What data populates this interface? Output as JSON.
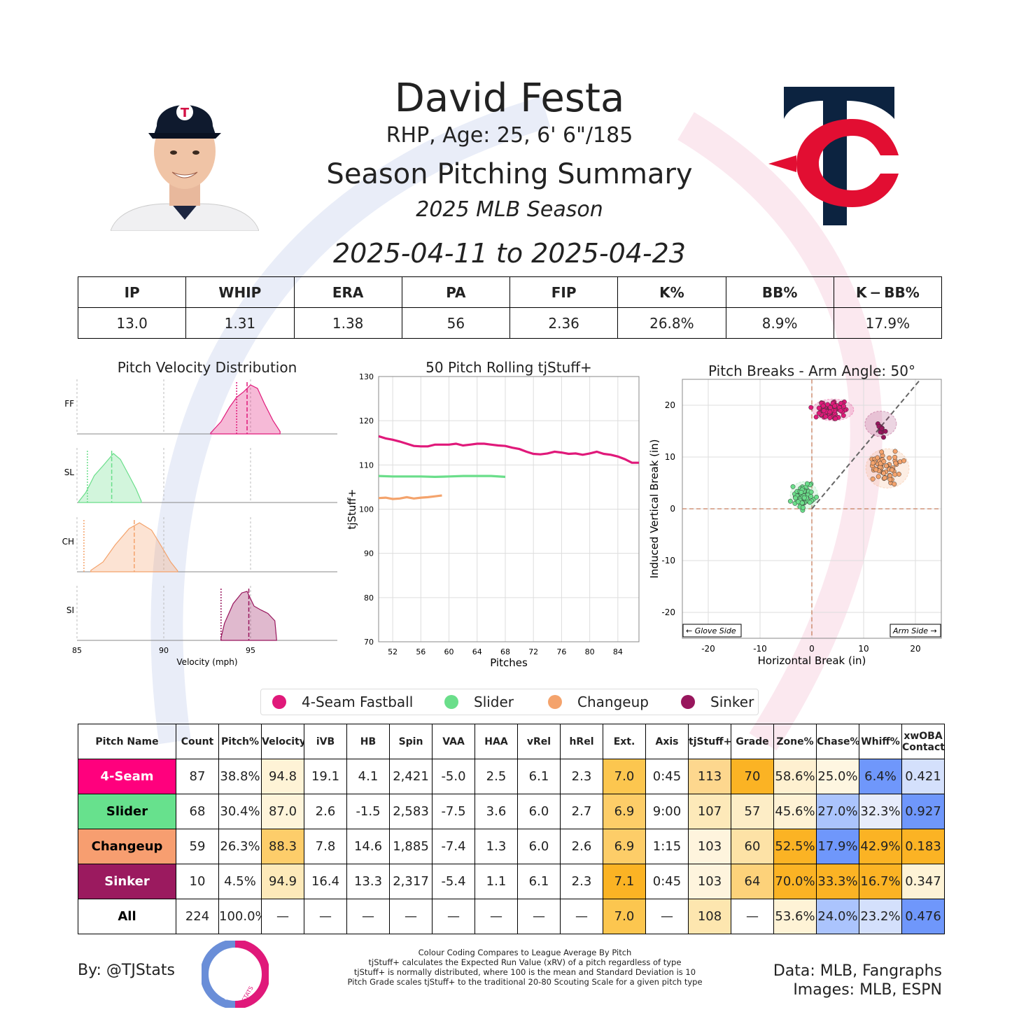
{
  "header": {
    "player_name": "David Festa",
    "player_info": "RHP, Age: 25, 6' 6\"/185",
    "title": "Season Pitching Summary",
    "season": "2025 MLB Season",
    "date_range": "2025-04-11 to 2025-04-23",
    "team_logo_letters": "TC"
  },
  "summary_stats": {
    "headers": [
      "IP",
      "WHIP",
      "ERA",
      "PA",
      "FIP",
      "K%",
      "BB%",
      "K − BB%"
    ],
    "values": [
      "13.0",
      "1.31",
      "1.38",
      "56",
      "2.36",
      "26.8%",
      "8.9%",
      "17.9%"
    ]
  },
  "colors": {
    "FF": "#e0197a",
    "SL": "#6ade8a",
    "CH": "#f4a36c",
    "SI": "#98165d"
  },
  "legend": {
    "items": [
      {
        "label": "4-Seam Fastball",
        "color": "#e0197a"
      },
      {
        "label": "Slider",
        "color": "#6ade8a"
      },
      {
        "label": "Changeup",
        "color": "#f4a36c"
      },
      {
        "label": "Sinker",
        "color": "#98165d"
      }
    ]
  },
  "chart_data": [
    {
      "type": "area",
      "title": "Pitch Velocity Distribution",
      "xlabel": "Velocity (mph)",
      "xlim": [
        85,
        100
      ],
      "xticks": [
        "85",
        "90",
        "95"
      ],
      "series": [
        {
          "name": "FF",
          "color": "#e0197a",
          "mean": 94.8,
          "league_avg": 94.2,
          "x": [
            92.7,
            93.3,
            93.8,
            94.2,
            94.6,
            95.0,
            95.4,
            95.8,
            96.3,
            96.7
          ],
          "density": [
            0.02,
            0.25,
            0.55,
            0.75,
            0.86,
            1.0,
            0.93,
            0.62,
            0.27,
            0.05
          ]
        },
        {
          "name": "SL",
          "color": "#6ade8a",
          "mean": 87.0,
          "league_avg": 85.6,
          "x": [
            85.1,
            85.5,
            86.0,
            86.5,
            87.1,
            87.5,
            88.0,
            88.4,
            88.7
          ],
          "density": [
            0.02,
            0.2,
            0.55,
            0.75,
            1.0,
            0.88,
            0.55,
            0.28,
            0.03
          ]
        },
        {
          "name": "CH",
          "color": "#f4a36c",
          "mean": 88.3,
          "league_avg": 85.4,
          "x": [
            85.8,
            86.5,
            87.2,
            88.0,
            88.6,
            89.3,
            89.9,
            90.4,
            90.8
          ],
          "density": [
            0.03,
            0.2,
            0.55,
            0.88,
            1.0,
            0.85,
            0.5,
            0.2,
            0.02
          ]
        },
        {
          "name": "SI",
          "color": "#98165d",
          "mean": 94.9,
          "league_avg": 93.3,
          "x": [
            93.3,
            93.5,
            94.0,
            94.5,
            94.8,
            95.2,
            95.6,
            96.0,
            96.4,
            96.5
          ],
          "density": [
            0.05,
            0.35,
            0.75,
            0.97,
            1.0,
            0.7,
            0.62,
            0.55,
            0.4,
            0.02
          ]
        }
      ]
    },
    {
      "type": "line",
      "title": "50 Pitch Rolling tjStuff+",
      "xlabel": "Pitches",
      "ylabel": "tjStuff+",
      "xlim": [
        50,
        87
      ],
      "ylim": [
        70,
        130
      ],
      "xticks": [
        52,
        56,
        60,
        64,
        68,
        72,
        76,
        80,
        84
      ],
      "yticks": [
        70,
        80,
        90,
        100,
        110,
        120,
        130
      ],
      "series": [
        {
          "name": "FF",
          "color": "#e0197a",
          "x": [
            50,
            51,
            52,
            53,
            54,
            55,
            56,
            57,
            58,
            59,
            60,
            61,
            62,
            63,
            64,
            65,
            66,
            67,
            68,
            69,
            70,
            71,
            72,
            73,
            74,
            75,
            76,
            77,
            78,
            79,
            80,
            81,
            82,
            83,
            84,
            85,
            86,
            87
          ],
          "y": [
            116.5,
            116.0,
            115.7,
            115.3,
            114.8,
            114.3,
            114.2,
            114.2,
            114.6,
            114.6,
            114.6,
            114.8,
            114.4,
            114.6,
            114.8,
            114.8,
            114.6,
            114.4,
            114.3,
            113.9,
            113.6,
            113.0,
            112.5,
            112.4,
            112.6,
            113.0,
            112.8,
            112.5,
            112.6,
            112.3,
            112.6,
            113.0,
            112.5,
            112.3,
            111.9,
            111.3,
            110.5,
            110.5
          ]
        },
        {
          "name": "SL",
          "color": "#6ade8a",
          "x": [
            50,
            52,
            54,
            56,
            58,
            60,
            62,
            64,
            66,
            68
          ],
          "y": [
            107.5,
            107.4,
            107.4,
            107.4,
            107.3,
            107.4,
            107.5,
            107.5,
            107.5,
            107.3
          ]
        },
        {
          "name": "CH",
          "color": "#f4a36c",
          "x": [
            50,
            51,
            52,
            53,
            54,
            55,
            56,
            57,
            58,
            59
          ],
          "y": [
            102.5,
            102.6,
            102.3,
            102.4,
            102.7,
            102.4,
            102.6,
            102.7,
            102.9,
            103.1
          ]
        }
      ]
    },
    {
      "type": "scatter",
      "title": "Pitch Breaks - Arm Angle: 50°",
      "xlabel": "Horizontal Break (in)",
      "ylabel": "Induced Vertical Break (in)",
      "xlim": [
        -25,
        25
      ],
      "ylim": [
        -25,
        25
      ],
      "xticks": [
        -20,
        -10,
        0,
        10,
        20
      ],
      "yticks": [
        -20,
        -10,
        0,
        10,
        20
      ],
      "arm_angle_deg": 50,
      "annotations": [
        "← Glove Side",
        "Arm Side →"
      ],
      "series": [
        {
          "name": "FF",
          "color": "#e0197a",
          "center": [
            4.1,
            19.1
          ],
          "spread": [
            2.1,
            1.1
          ],
          "count": 87
        },
        {
          "name": "SL",
          "color": "#6ade8a",
          "center": [
            -1.5,
            2.6
          ],
          "spread": [
            1.4,
            1.4
          ],
          "count": 68
        },
        {
          "name": "CH",
          "color": "#f4a36c",
          "center": [
            14.6,
            7.8
          ],
          "spread": [
            2.2,
            2.0
          ],
          "count": 59
        },
        {
          "name": "SI",
          "color": "#98165d",
          "center": [
            13.3,
            16.4
          ],
          "spread": [
            1.6,
            1.3
          ],
          "count": 10
        }
      ]
    }
  ],
  "pitch_table": {
    "headers": [
      "Pitch Name",
      "Count",
      "Pitch%",
      "Velocity",
      "iVB",
      "HB",
      "Spin",
      "VAA",
      "HAA",
      "vRel",
      "hRel",
      "Ext.",
      "Axis",
      "tjStuff+",
      "Grade",
      "Zone%",
      "Chase%",
      "Whiff%",
      "xwOBA Contact"
    ],
    "rows": [
      {
        "name": "4-Seam",
        "name_bg": "#ff007d",
        "name_color": "#ffffff",
        "cells": [
          "87",
          "38.8%",
          "94.8",
          "19.1",
          "4.1",
          "2,421",
          "-5.0",
          "2.5",
          "6.1",
          "2.3",
          "7.0",
          "0:45",
          "113",
          "70",
          "58.6%",
          "25.0%",
          "6.4%",
          "0.421"
        ],
        "bgs": [
          "",
          "",
          "#fef3d6",
          "",
          "",
          "",
          "",
          "",
          "",
          "",
          "#fcc64f",
          "",
          "#fdd78e",
          "#fbb324",
          "#fef0d0",
          "#fef6e1",
          "#6f97fb",
          "#d4e0fc"
        ]
      },
      {
        "name": "Slider",
        "name_bg": "#67e18d",
        "name_color": "#000000",
        "cells": [
          "68",
          "30.4%",
          "87.0",
          "2.6",
          "-1.5",
          "2,583",
          "-7.5",
          "3.6",
          "6.0",
          "2.7",
          "6.9",
          "9:00",
          "107",
          "57",
          "45.6%",
          "27.0%",
          "32.3%",
          "0.927"
        ],
        "bgs": [
          "",
          "",
          "#fef4da",
          "",
          "",
          "",
          "",
          "",
          "",
          "",
          "#fdcd68",
          "",
          "#fde9b9",
          "#fdedc6",
          "#fef2d5",
          "#abc4fd",
          "#e7ecfb",
          "#6f97fb"
        ]
      },
      {
        "name": "Changeup",
        "name_bg": "#f79e70",
        "name_color": "#000000",
        "cells": [
          "59",
          "26.3%",
          "88.3",
          "7.8",
          "14.6",
          "1,885",
          "-7.4",
          "1.3",
          "6.0",
          "2.6",
          "6.9",
          "1:15",
          "103",
          "60",
          "52.5%",
          "17.9%",
          "42.9%",
          "0.183"
        ],
        "bgs": [
          "",
          "",
          "#fdcd6a",
          "",
          "",
          "",
          "",
          "",
          "",
          "",
          "#fdcd68",
          "",
          "#fef4dd",
          "#fde2a6",
          "#fbb324",
          "#6f97fb",
          "#fbb324",
          "#fbb324"
        ]
      },
      {
        "name": "Sinker",
        "name_bg": "#9b1a5f",
        "name_color": "#ffffff",
        "cells": [
          "10",
          "4.5%",
          "94.9",
          "16.4",
          "13.3",
          "2,317",
          "-5.4",
          "1.1",
          "6.1",
          "2.3",
          "7.1",
          "0:45",
          "103",
          "64",
          "70.0%",
          "33.3%",
          "16.7%",
          "0.347"
        ],
        "bgs": [
          "",
          "",
          "#fde9b9",
          "",
          "",
          "",
          "",
          "",
          "",
          "",
          "#fbb324",
          "",
          "#fef4dd",
          "#fdd27a",
          "#fbb324",
          "#fbb324",
          "#fbb324",
          "#fef3d6"
        ]
      },
      {
        "name": "All",
        "name_bg": "#ffffff",
        "name_color": "#000000",
        "cells": [
          "224",
          "100.0%",
          "—",
          "—",
          "—",
          "—",
          "—",
          "—",
          "—",
          "—",
          "7.0",
          "—",
          "108",
          "—",
          "53.6%",
          "24.0%",
          "23.2%",
          "0.476"
        ],
        "bgs": [
          "",
          "",
          "",
          "",
          "",
          "",
          "",
          "",
          "",
          "",
          "#fcc64f",
          "",
          "#fde6af",
          "",
          "#fef3d6",
          "#abc4fd",
          "#d4e0fc",
          "#6f97fb"
        ]
      }
    ]
  },
  "footer": {
    "notes": [
      "Colour Coding Compares to League Average By Pitch",
      "tjStuff+ calculates the Expected Run Value (xRV) of a pitch regardless of type",
      "tjStuff+ is normally distributed, where 100 is the mean and Standard Deviation is 10",
      "Pitch Grade scales tjStuff+ to the traditional 20-80 Scouting Scale for a given pitch type"
    ],
    "by_label": "By: @TJStats",
    "data_source": "Data: MLB, Fangraphs",
    "image_source": "Images: MLB, ESPN",
    "logo_text": "STATS"
  }
}
